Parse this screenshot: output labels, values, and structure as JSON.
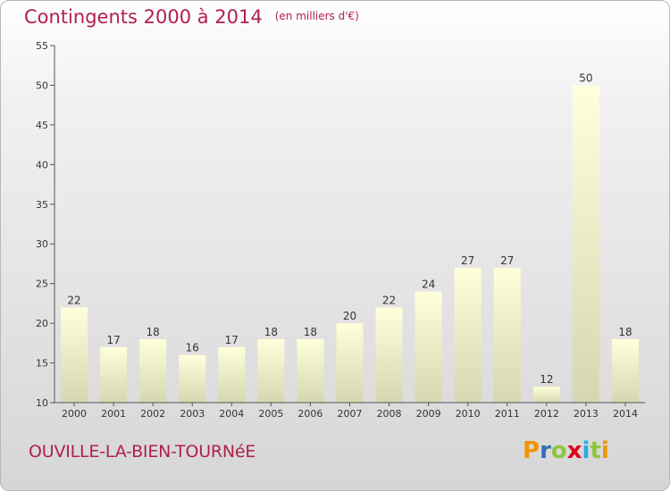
{
  "header": {
    "title": "Contingents 2000 à 2014",
    "unit": "(en milliers d'€)"
  },
  "footer": {
    "commune": "OUVILLE-LA-BIEN-TOURNéE",
    "logo_letters": [
      "P",
      "r",
      "o",
      "x",
      "i",
      "t",
      "i"
    ],
    "logo_colors": [
      "#f29400",
      "#2f6fb5",
      "#8cc63f",
      "#e2001a",
      "#29abe2",
      "#8cc63f",
      "#f29400"
    ]
  },
  "colors": {
    "title": "#b0204a",
    "bar_top": "#ffffdc",
    "bar_bottom": "#d6d6b0",
    "axis": "#555555"
  },
  "chart_data": {
    "type": "bar",
    "categories": [
      "2000",
      "2001",
      "2002",
      "2003",
      "2004",
      "2005",
      "2006",
      "2007",
      "2008",
      "2009",
      "2010",
      "2011",
      "2012",
      "2013",
      "2014"
    ],
    "values": [
      22,
      17,
      18,
      16,
      17,
      18,
      18,
      20,
      22,
      24,
      27,
      27,
      12,
      50,
      18
    ],
    "ylim": [
      10,
      55
    ],
    "yticks": [
      10,
      15,
      20,
      25,
      30,
      35,
      40,
      45,
      50,
      55
    ],
    "grid": false,
    "title": "Contingents 2000 à 2014",
    "xlabel": "",
    "ylabel": ""
  }
}
